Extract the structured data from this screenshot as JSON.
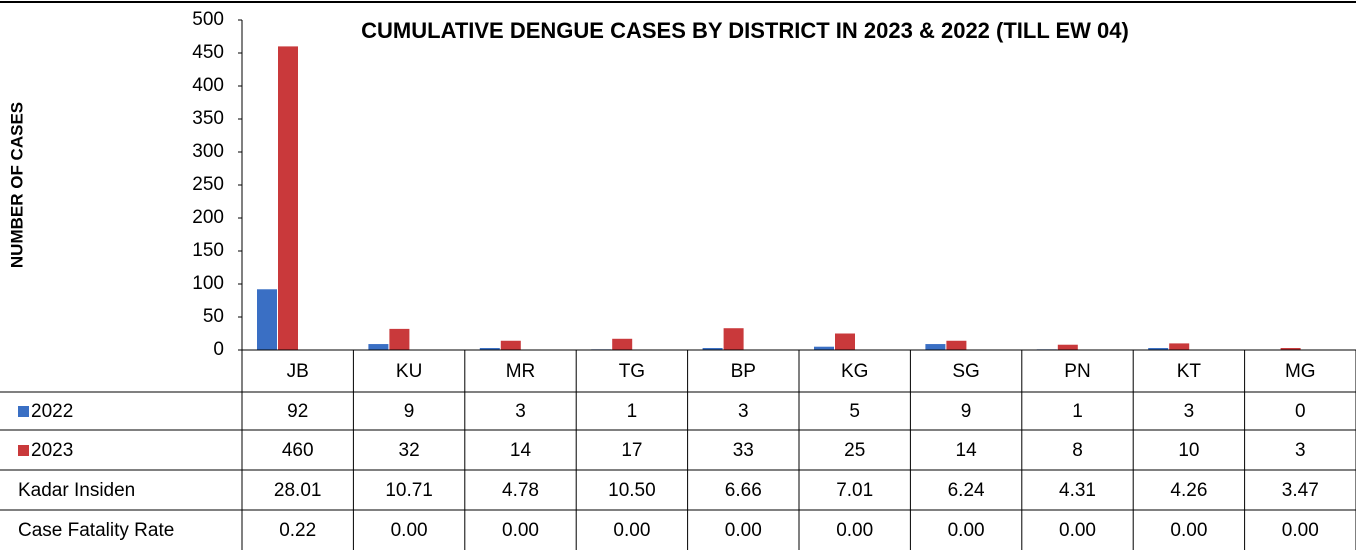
{
  "chart_data": {
    "type": "bar",
    "title": "CUMULATIVE DENGUE CASES BY DISTRICT IN 2023 & 2022 (TILL EW 04)",
    "y_label": "NUMBER OF CASES",
    "categories": [
      "JB",
      "KU",
      "MR",
      "TG",
      "BP",
      "KG",
      "SG",
      "PN",
      "KT",
      "MG"
    ],
    "series": [
      {
        "name": "2022",
        "color": "#3a6fc4",
        "values": [
          92,
          9,
          3,
          1,
          3,
          5,
          9,
          1,
          3,
          0
        ]
      },
      {
        "name": "2023",
        "color": "#c9393b",
        "values": [
          460,
          32,
          14,
          17,
          33,
          25,
          14,
          8,
          10,
          3
        ]
      }
    ],
    "table_rows": [
      {
        "name": "Kadar Insiden",
        "values": [
          "28.01",
          "10.71",
          "4.78",
          "10.50",
          "6.66",
          "7.01",
          "6.24",
          "4.31",
          "4.26",
          "3.47"
        ]
      },
      {
        "name": "Case Fatality Rate",
        "values": [
          "0.22",
          "0.00",
          "0.00",
          "0.00",
          "0.00",
          "0.00",
          "0.00",
          "0.00",
          "0.00",
          "0.00"
        ]
      }
    ],
    "ylim": [
      0,
      500
    ],
    "yticks": [
      0,
      50,
      100,
      150,
      200,
      250,
      300,
      350,
      400,
      450,
      500
    ],
    "grid": false
  }
}
